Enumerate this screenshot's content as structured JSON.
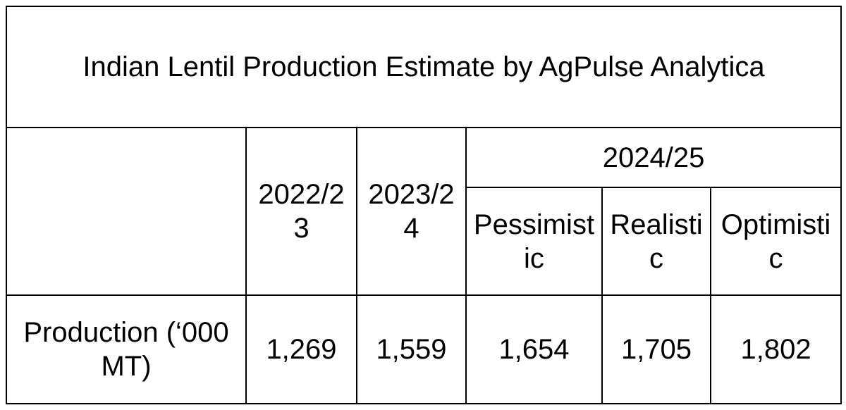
{
  "title": "Indian Lentil Production Estimate by AgPulse Analytica",
  "table": {
    "header": {
      "years": [
        "2022/23",
        "2023/24",
        "2024/25"
      ],
      "scenarios": [
        "Pessimistic",
        "Realistic",
        "Optimistic"
      ]
    },
    "rows": [
      [
        "Production (‘000 MT)",
        "1,269",
        "1,559",
        "1,654",
        "1,705",
        "1,802"
      ]
    ]
  }
}
